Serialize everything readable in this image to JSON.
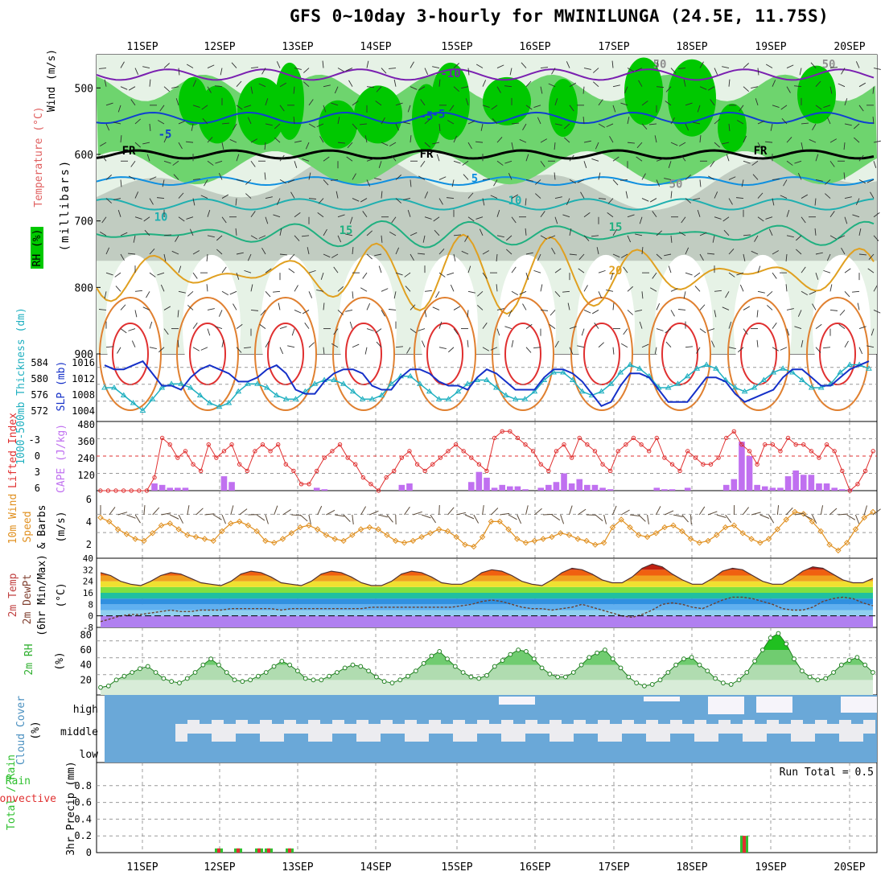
{
  "title": "GFS 0~10day 3-hourly for MWINILUNGA (24.5E, 11.75S)",
  "x_tick_labels": [
    "11SEP",
    "12SEP",
    "13SEP",
    "14SEP",
    "15SEP",
    "16SEP",
    "17SEP",
    "18SEP",
    "19SEP",
    "20SEP"
  ],
  "colors": {
    "rh_dark": "#00c800",
    "rh_mid": "#6ed46e",
    "rh_light": "#cfe8cf",
    "gray": "#b8c2b8",
    "slp": "#1530c8",
    "thick": "#20b0c0",
    "lifted": "#e03030",
    "cape": "#c070f0",
    "wind10": "#e09020",
    "barb": "#303030",
    "rh2m": "#30b030",
    "cloud": "#6aa8d8",
    "cloud_clear": "#ececf0",
    "precip_total": "#30c030",
    "precip_conv": "#e03030"
  },
  "panels": {
    "upper": {
      "ylabel_rh": "RH (%)",
      "ylabel_temp": "Temperature (°C)",
      "ylabel_wind": "Wind (m/s)",
      "ylabel_units": "(millibars)",
      "yticks": [
        "500",
        "600",
        "700",
        "800",
        "900"
      ],
      "contour_labels": [
        "-10",
        "-5",
        "-5",
        "-5",
        "FR",
        "FR",
        "FR",
        "5",
        "10",
        "10",
        "15",
        "15",
        "20",
        "50",
        "50",
        "50"
      ]
    },
    "thickness_slp": {
      "ylabel_thick": "1000-500mb Thickness (dm)",
      "ylabel_slp": "SLP (mb)",
      "left_ticks": [
        "584",
        "580",
        "576",
        "572"
      ],
      "right_ticks": [
        "1016",
        "1012",
        "1008",
        "1004"
      ]
    },
    "li_cape": {
      "ylabel_li": "Lifted Index",
      "ylabel_cape": "CAPE (J/kg)",
      "left_ticks": [
        "-3",
        "0",
        "3",
        "6"
      ],
      "right_ticks": [
        "480",
        "360",
        "240",
        "120"
      ]
    },
    "wind10": {
      "ylabel_a": "10m Wind",
      "ylabel_b": "Speed",
      "ylabel_c": "& Barbs",
      "ylabel_units": "(m/s)",
      "yticks": [
        "6",
        "4",
        "2"
      ]
    },
    "temp2m": {
      "ylabel_a": "2m Temp",
      "ylabel_b": "2m DewPt",
      "ylabel_c": "(6hr Min/Max)",
      "ylabel_units": "(°C)",
      "yticks": [
        "40",
        "32",
        "24",
        "16",
        "8",
        "0",
        "-8"
      ]
    },
    "rh2m": {
      "ylabel": "2m RH",
      "ylabel_units": "(%)",
      "yticks": [
        "80",
        "60",
        "40",
        "20"
      ]
    },
    "cloud": {
      "ylabel": "Cloud Cover",
      "ylabel_units": "(%)",
      "levels": [
        "high",
        "middle",
        "low"
      ]
    },
    "precip": {
      "ylabel_a": "Total / Rain",
      "ylabel_b": "Convective",
      "ylabel_units": "3hr Precip (mm)",
      "yticks": [
        "0.8",
        "0.6",
        "0.4",
        "0.2",
        "0"
      ],
      "run_total": "Run Total = 0.5"
    }
  },
  "chart_data": [
    {
      "type": "line",
      "title": "1000-500mb Thickness (dm) / SLP (mb)",
      "x": "3-hourly steps, 0~10 day",
      "series": [
        {
          "name": "SLP (mb)",
          "values": [
            1015,
            1014,
            1014,
            1015,
            1016,
            1013,
            1010,
            1010,
            1009,
            1012,
            1014,
            1015,
            1014,
            1013,
            1011,
            1011,
            1012,
            1014,
            1015,
            1013,
            1009,
            1008,
            1008,
            1011,
            1013,
            1014,
            1014,
            1013,
            1010,
            1009,
            1009,
            1012,
            1014,
            1014,
            1013,
            1011,
            1010,
            1010,
            1009,
            1012,
            1014,
            1013,
            1011,
            1009,
            1009,
            1009,
            1012,
            1014,
            1014,
            1013,
            1011,
            1008,
            1005,
            1006,
            1010,
            1013,
            1013,
            1012,
            1009,
            1006,
            1006,
            1006,
            1009,
            1012,
            1012,
            1011,
            1008,
            1006,
            1007,
            1008,
            1009,
            1012,
            1014,
            1014,
            1012,
            1010,
            1010,
            1012,
            1014,
            1015,
            1016
          ]
        },
        {
          "name": "Thickness (dm)",
          "values": [
            578,
            578,
            576,
            574,
            572,
            575,
            578,
            579,
            579,
            578,
            576,
            574,
            573,
            574,
            577,
            579,
            579,
            578,
            576,
            575,
            575,
            577,
            579,
            580,
            580,
            579,
            577,
            575,
            575,
            576,
            579,
            581,
            581,
            579,
            577,
            575,
            575,
            577,
            579,
            580,
            580,
            578,
            576,
            575,
            575,
            577,
            580,
            582,
            582,
            580,
            577,
            576,
            577,
            579,
            582,
            584,
            583,
            581,
            578,
            578,
            579,
            581,
            583,
            584,
            583,
            580,
            578,
            577,
            578,
            580,
            582,
            583,
            582,
            580,
            578,
            578,
            579,
            582,
            584,
            584,
            583
          ]
        }
      ]
    },
    {
      "type": "bar",
      "title": "Lifted Index / CAPE (J/kg)",
      "series": [
        {
          "name": "CAPE (J/kg)",
          "values": [
            0,
            0,
            0,
            0,
            0,
            0,
            0,
            50,
            40,
            20,
            20,
            20,
            0,
            0,
            0,
            0,
            100,
            60,
            0,
            0,
            0,
            0,
            0,
            0,
            0,
            0,
            0,
            0,
            20,
            10,
            0,
            0,
            0,
            0,
            0,
            0,
            0,
            0,
            0,
            40,
            50,
            0,
            0,
            0,
            0,
            0,
            0,
            0,
            60,
            130,
            90,
            20,
            40,
            30,
            30,
            10,
            0,
            20,
            40,
            60,
            120,
            50,
            80,
            40,
            40,
            20,
            10,
            0,
            0,
            0,
            0,
            0,
            20,
            10,
            10,
            0,
            20,
            0,
            0,
            0,
            0,
            40,
            80,
            340,
            240,
            40,
            30,
            20,
            20,
            100,
            140,
            110,
            110,
            50,
            50,
            20,
            10,
            10,
            0,
            0,
            0
          ]
        },
        {
          "name": "Lifted Index",
          "values": [
            6,
            6,
            6,
            6,
            6,
            6,
            6,
            4,
            -2,
            -1,
            1,
            0,
            2,
            3,
            -1,
            1,
            0,
            -1,
            2,
            3,
            0,
            -1,
            0,
            -1,
            2,
            3,
            5,
            5,
            3,
            1,
            0,
            -1,
            1,
            2,
            4,
            5,
            6,
            4,
            3,
            1,
            0,
            2,
            3,
            2,
            1,
            0,
            -1,
            0,
            1,
            2,
            3,
            -2,
            -3,
            -3,
            -2,
            -1,
            0,
            2,
            3,
            0,
            -1,
            1,
            -2,
            -1,
            0,
            2,
            3,
            0,
            -1,
            -2,
            -1,
            0,
            -2,
            1,
            2,
            3,
            0,
            1,
            2,
            2,
            1,
            -2,
            -3,
            -1,
            0,
            2,
            -1,
            -1,
            0,
            -2,
            -1,
            -1,
            0,
            1,
            -1,
            0,
            3,
            6,
            5,
            3,
            0
          ]
        }
      ]
    },
    {
      "type": "line",
      "title": "10m Wind Speed & Barbs (m/s)",
      "series": [
        {
          "name": "10m Wind Speed",
          "values": [
            4.2,
            3.8,
            3.0,
            2.5,
            2.0,
            1.8,
            2.6,
            3.4,
            3.6,
            3.0,
            2.4,
            2.2,
            2.0,
            1.8,
            2.8,
            3.6,
            3.8,
            3.4,
            2.8,
            1.8,
            1.6,
            2.0,
            2.6,
            3.2,
            3.4,
            3.0,
            2.4,
            2.0,
            1.8,
            2.4,
            3.0,
            3.2,
            3.0,
            2.4,
            1.8,
            1.6,
            1.8,
            2.2,
            2.6,
            3.0,
            2.8,
            2.2,
            1.4,
            1.2,
            2.2,
            3.8,
            3.8,
            3.0,
            2.0,
            1.6,
            1.8,
            2.0,
            2.2,
            2.6,
            2.4,
            2.0,
            1.8,
            1.4,
            1.6,
            3.2,
            4.0,
            3.2,
            2.4,
            2.2,
            2.6,
            3.2,
            3.4,
            2.8,
            2.0,
            1.6,
            1.8,
            2.4,
            3.2,
            3.4,
            2.6,
            2.0,
            1.6,
            2.0,
            3.0,
            4.0,
            4.8,
            4.6,
            3.8,
            2.8,
            1.4,
            0.8,
            1.6,
            3.0,
            4.2,
            4.8
          ]
        }
      ]
    },
    {
      "type": "area",
      "title": "2m Temp / 2m DewPt (6hr Min/Max) (°C)",
      "series": [
        {
          "name": "2m Temp",
          "values": [
            30,
            28,
            24,
            22,
            21,
            24,
            28,
            30,
            29,
            26,
            23,
            22,
            21,
            24,
            29,
            31,
            30,
            27,
            23,
            22,
            21,
            24,
            29,
            31,
            30,
            27,
            23,
            21,
            21,
            24,
            29,
            31,
            30,
            27,
            23,
            22,
            22,
            25,
            30,
            32,
            31,
            28,
            24,
            22,
            21,
            25,
            30,
            33,
            32,
            29,
            25,
            23,
            23,
            27,
            33,
            36,
            34,
            29,
            25,
            22,
            22,
            26,
            31,
            33,
            32,
            28,
            24,
            22,
            22,
            26,
            31,
            34,
            33,
            29,
            25,
            23,
            23,
            26
          ]
        },
        {
          "name": "2m DewPt",
          "values": [
            -4,
            -2,
            0,
            1,
            1,
            2,
            3,
            4,
            3,
            3,
            4,
            4,
            4,
            5,
            5,
            5,
            5,
            5,
            4,
            5,
            5,
            5,
            5,
            5,
            5,
            5,
            5,
            6,
            6,
            6,
            6,
            6,
            6,
            6,
            6,
            6,
            7,
            8,
            10,
            11,
            10,
            8,
            6,
            5,
            5,
            4,
            5,
            6,
            8,
            6,
            4,
            2,
            0,
            -1,
            1,
            4,
            8,
            9,
            8,
            6,
            5,
            8,
            11,
            13,
            13,
            12,
            10,
            8,
            5,
            4,
            4,
            6,
            10,
            12,
            13,
            12,
            9,
            7
          ]
        }
      ]
    },
    {
      "type": "area",
      "title": "2m RH (%)",
      "series": [
        {
          "name": "2m RH",
          "values": [
            10,
            12,
            20,
            25,
            30,
            35,
            38,
            30,
            22,
            18,
            16,
            22,
            30,
            40,
            48,
            40,
            30,
            20,
            18,
            20,
            25,
            30,
            38,
            45,
            40,
            32,
            22,
            20,
            20,
            25,
            30,
            36,
            40,
            38,
            32,
            24,
            18,
            16,
            20,
            25,
            32,
            42,
            52,
            58,
            48,
            38,
            30,
            24,
            22,
            26,
            38,
            46,
            54,
            60,
            58,
            48,
            36,
            28,
            24,
            24,
            30,
            40,
            50,
            56,
            60,
            48,
            36,
            24,
            16,
            12,
            14,
            20,
            30,
            40,
            48,
            50,
            40,
            32,
            22,
            16,
            14,
            20,
            30,
            45,
            60,
            76,
            82,
            68,
            48,
            32,
            24,
            20,
            22,
            30,
            40,
            46,
            50,
            40,
            30
          ]
        }
      ]
    },
    {
      "type": "area",
      "title": "Cloud Cover (%)",
      "categories": [
        "low",
        "middle",
        "high"
      ]
    },
    {
      "type": "bar",
      "title": "3hr Precip (mm)",
      "xlabel": "",
      "ylabel": "3hr Precip (mm)",
      "ylim": [
        0,
        1.0
      ],
      "series": [
        {
          "name": "Total / Rain",
          "values": [
            0.05,
            0.05,
            0.05,
            0.05,
            0.05,
            0.2
          ]
        },
        {
          "name": "Convective",
          "values": [
            0.05,
            0.05,
            0.05,
            0.05,
            0.05,
            0.2
          ]
        }
      ],
      "x": [
        "12SEP 00",
        "12SEP 06",
        "12SEP 12",
        "12SEP 15",
        "12SEP 21",
        "18SEP 15"
      ]
    }
  ]
}
